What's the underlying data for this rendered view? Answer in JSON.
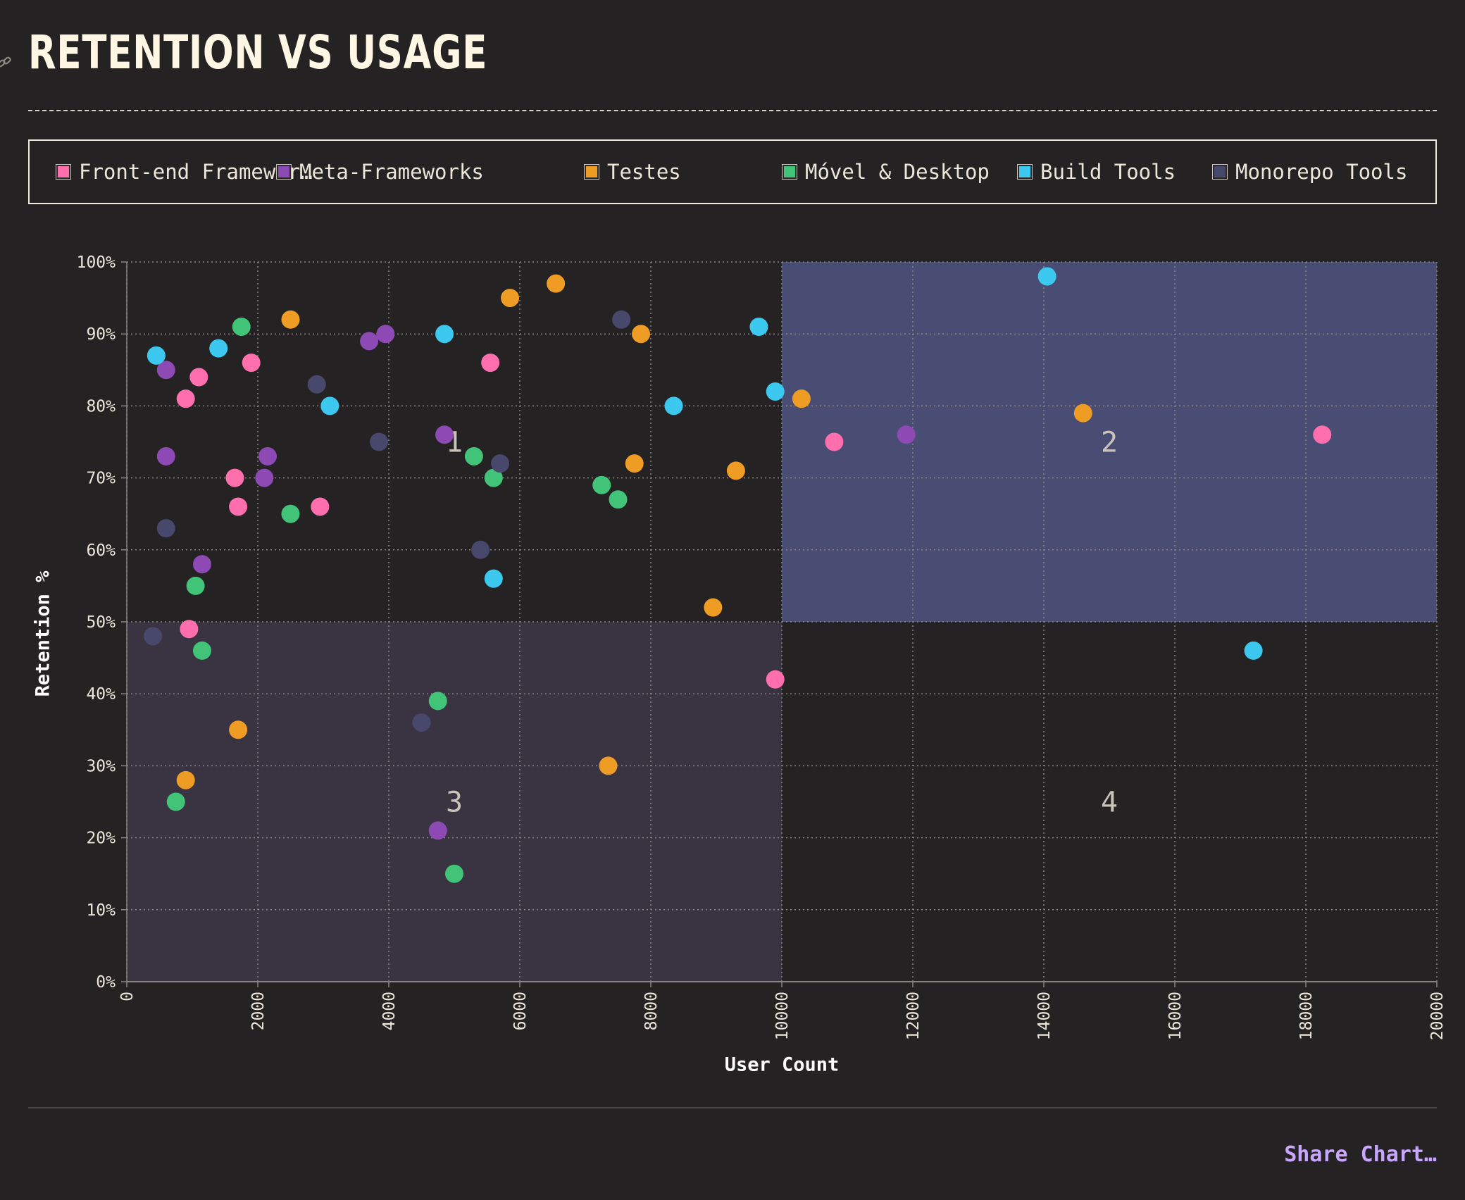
{
  "title": "RETENTION VS USAGE",
  "share_label": "Share Chart…",
  "legend": [
    {
      "label": "Front-end Framewor…",
      "color": "#ff6fae"
    },
    {
      "label": "Meta-Frameworks",
      "color": "#8e4ab4"
    },
    {
      "label": "Testes",
      "color": "#ef9c25"
    },
    {
      "label": "Móvel & Desktop",
      "color": "#42c478"
    },
    {
      "label": "Build Tools",
      "color": "#3dc9ef"
    },
    {
      "label": "Monorepo Tools",
      "color": "#47486b"
    }
  ],
  "chart_data": {
    "type": "scatter",
    "xlabel": "User Count",
    "ylabel": "Retention %",
    "xlim": [
      0,
      20000
    ],
    "ylim": [
      0,
      100
    ],
    "xticks": [
      "0",
      "2000",
      "4000",
      "6000",
      "8000",
      "10000",
      "12000",
      "14000",
      "16000",
      "18000",
      "20000"
    ],
    "yticks": [
      "0%",
      "10%",
      "20%",
      "30%",
      "40%",
      "50%",
      "60%",
      "70%",
      "80%",
      "90%",
      "100%"
    ],
    "grid": true,
    "quadrants": [
      {
        "label": "1",
        "x": [
          0,
          10000
        ],
        "y": [
          50,
          100
        ],
        "fill": null
      },
      {
        "label": "2",
        "x": [
          10000,
          20000
        ],
        "y": [
          50,
          100
        ],
        "fill": "#4a4d73"
      },
      {
        "label": "3",
        "x": [
          0,
          10000
        ],
        "y": [
          0,
          50
        ],
        "fill": "#393342"
      },
      {
        "label": "4",
        "x": [
          10000,
          20000
        ],
        "y": [
          0,
          50
        ],
        "fill": null
      }
    ],
    "series": [
      {
        "name": "Front-end Framewor…",
        "color": "#ff6fae",
        "points": [
          [
            900,
            81
          ],
          [
            1100,
            84
          ],
          [
            1900,
            86
          ],
          [
            1650,
            70
          ],
          [
            1700,
            66
          ],
          [
            2950,
            66
          ],
          [
            5550,
            86
          ],
          [
            950,
            49
          ],
          [
            9900,
            42
          ],
          [
            10800,
            75
          ],
          [
            18250,
            76
          ]
        ]
      },
      {
        "name": "Meta-Frameworks",
        "color": "#8e4ab4",
        "points": [
          [
            600,
            85
          ],
          [
            600,
            73
          ],
          [
            2150,
            73
          ],
          [
            2100,
            70
          ],
          [
            3700,
            89
          ],
          [
            3950,
            90
          ],
          [
            4850,
            76
          ],
          [
            1150,
            58
          ],
          [
            4750,
            21
          ],
          [
            11900,
            76
          ]
        ]
      },
      {
        "name": "Testes",
        "color": "#ef9c25",
        "points": [
          [
            2500,
            92
          ],
          [
            5850,
            95
          ],
          [
            6550,
            97
          ],
          [
            7850,
            90
          ],
          [
            7750,
            72
          ],
          [
            9300,
            71
          ],
          [
            10300,
            81
          ],
          [
            14600,
            79
          ],
          [
            8950,
            52
          ],
          [
            1700,
            35
          ],
          [
            900,
            28
          ],
          [
            7350,
            30
          ]
        ]
      },
      {
        "name": "Móvel & Desktop",
        "color": "#42c478",
        "points": [
          [
            1750,
            91
          ],
          [
            2500,
            65
          ],
          [
            1050,
            55
          ],
          [
            1150,
            46
          ],
          [
            5300,
            73
          ],
          [
            5600,
            70
          ],
          [
            7250,
            69
          ],
          [
            7500,
            67
          ],
          [
            4750,
            39
          ],
          [
            750,
            25
          ],
          [
            5000,
            15
          ]
        ]
      },
      {
        "name": "Build Tools",
        "color": "#3dc9ef",
        "points": [
          [
            450,
            87
          ],
          [
            1400,
            88
          ],
          [
            3100,
            80
          ],
          [
            4850,
            90
          ],
          [
            8350,
            80
          ],
          [
            9650,
            91
          ],
          [
            9900,
            82
          ],
          [
            5600,
            56
          ],
          [
            14050,
            98
          ],
          [
            17200,
            46
          ]
        ]
      },
      {
        "name": "Monorepo Tools",
        "color": "#47486b",
        "points": [
          [
            2900,
            83
          ],
          [
            3850,
            75
          ],
          [
            7550,
            92
          ],
          [
            5700,
            72
          ],
          [
            600,
            63
          ],
          [
            5400,
            60
          ],
          [
            400,
            48
          ],
          [
            4500,
            36
          ]
        ]
      }
    ]
  }
}
